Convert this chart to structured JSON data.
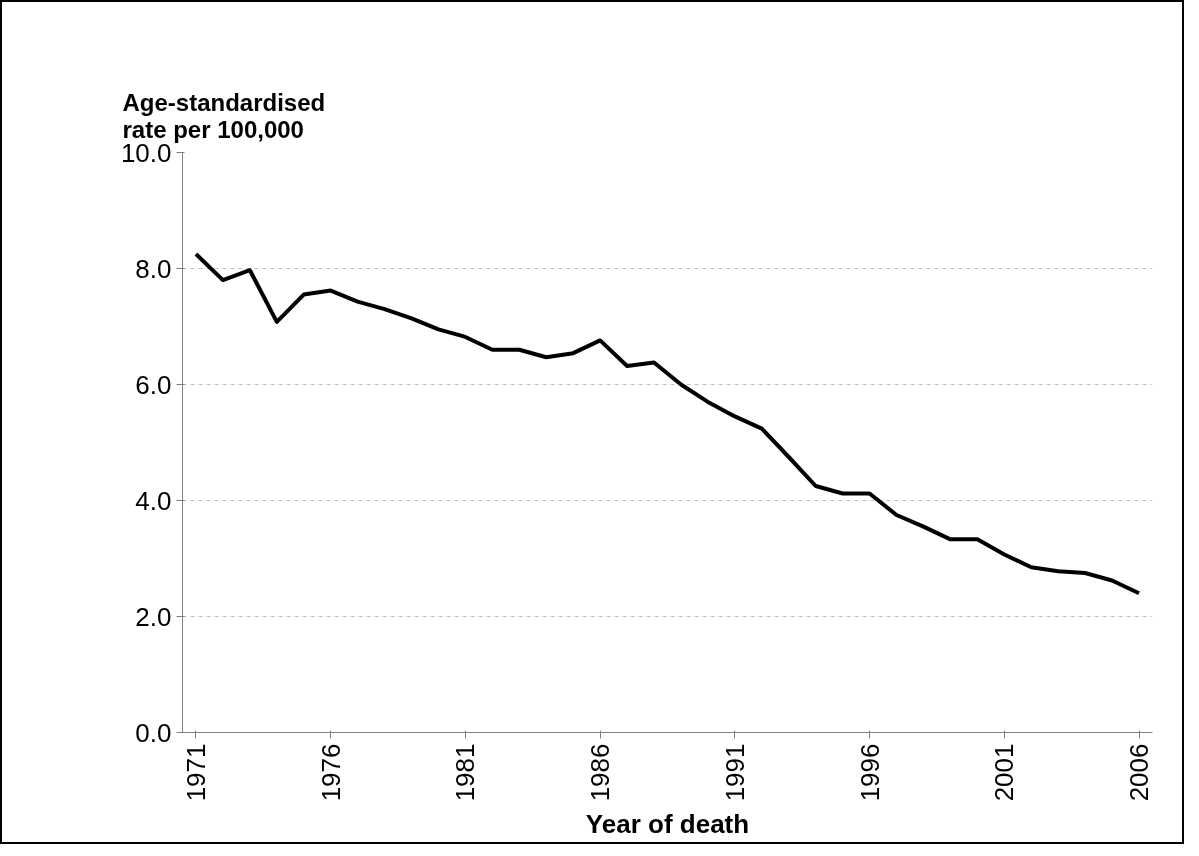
{
  "chart_data": {
    "type": "line",
    "ylabel": "Age-standardised\nrate per 100,000",
    "xlabel": "Year of death",
    "x": [
      1971,
      1972,
      1973,
      1974,
      1975,
      1976,
      1977,
      1978,
      1979,
      1980,
      1981,
      1982,
      1983,
      1984,
      1985,
      1986,
      1987,
      1988,
      1989,
      1990,
      1991,
      1992,
      1993,
      1994,
      1995,
      1996,
      1997,
      1998,
      1999,
      2000,
      2001,
      2002,
      2003,
      2004,
      2005,
      2006
    ],
    "series": [
      {
        "color": "#000000",
        "values": [
          8.25,
          7.8,
          7.97,
          7.08,
          7.55,
          7.62,
          7.43,
          7.3,
          7.14,
          6.95,
          6.82,
          6.6,
          6.6,
          6.47,
          6.54,
          6.76,
          6.32,
          6.38,
          6.0,
          5.7,
          5.45,
          5.24,
          4.75,
          4.25,
          4.12,
          4.12,
          3.75,
          3.55,
          3.33,
          3.33,
          3.07,
          2.85,
          2.78,
          2.75,
          2.62,
          2.4
        ]
      }
    ],
    "xlim": [
      1970.5,
      2006.5
    ],
    "xticks": [
      1971,
      1976,
      1981,
      1986,
      1991,
      1996,
      2001,
      2006
    ],
    "ylim": [
      0,
      10
    ],
    "yticks": [
      {
        "value": 0,
        "label": "0.0"
      },
      {
        "value": 2,
        "label": "2.0"
      },
      {
        "value": 4,
        "label": "4.0"
      },
      {
        "value": 6,
        "label": "6.0"
      },
      {
        "value": 8,
        "label": "8.0"
      },
      {
        "value": 10,
        "label": "10.0"
      }
    ],
    "grid": "y",
    "marker": "none",
    "line_style": "solid"
  }
}
